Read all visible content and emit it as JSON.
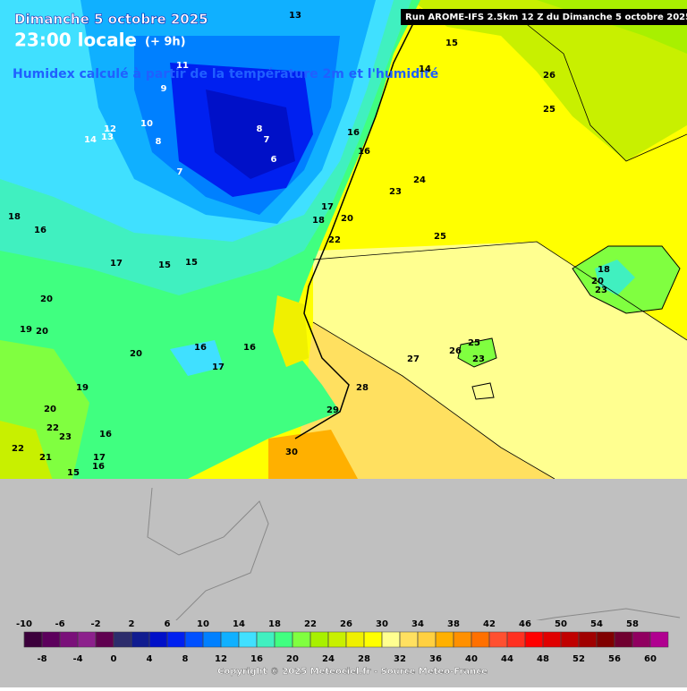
{
  "header": {
    "date": "Dimanche 5 octobre 2025",
    "time": "23:00 locale",
    "offset": "(+ 9h)",
    "subtitle": "Humidex calculé à partir de la température 2m et l'humidité",
    "run": "Run AROME-IFS 2.5km 12 Z du Dimanche 5 octobre 2025"
  },
  "contour_labels": [
    13,
    15,
    14,
    26,
    25,
    11,
    9,
    10,
    12,
    13,
    14,
    8,
    8,
    7,
    7,
    6,
    16,
    16,
    24,
    23,
    17,
    18,
    20,
    22,
    25,
    18,
    16,
    17,
    15,
    15,
    20,
    19,
    20,
    20,
    16,
    16,
    17,
    19,
    20,
    22,
    23,
    22,
    21,
    16,
    17,
    16,
    15,
    25,
    26,
    23,
    27,
    28,
    29,
    30,
    18,
    20,
    23
  ],
  "colorbar": {
    "ticks": [
      -10,
      -8,
      -6,
      -4,
      -2,
      0,
      2,
      4,
      6,
      8,
      10,
      12,
      14,
      16,
      18,
      20,
      22,
      24,
      26,
      28,
      30,
      32,
      34,
      36,
      38,
      40,
      42,
      44,
      46,
      48,
      50,
      52,
      54,
      56,
      58,
      60
    ],
    "colors": [
      "#3c003c",
      "#5c005c",
      "#7a107a",
      "#8c208c",
      "#600050",
      "#2c2c6c",
      "#101c90",
      "#0010c8",
      "#0020f0",
      "#0050ff",
      "#0080ff",
      "#10b0ff",
      "#40e0ff",
      "#40f0c0",
      "#40ff80",
      "#80ff40",
      "#a8f000",
      "#c8f000",
      "#f0f000",
      "#ffff00",
      "#ffff90",
      "#ffe060",
      "#ffd040",
      "#ffb000",
      "#ff9000",
      "#ff7000",
      "#ff5030",
      "#ff3020",
      "#ff0000",
      "#e00000",
      "#c00000",
      "#a00000",
      "#800000",
      "#700030",
      "#900060",
      "#b00090"
    ]
  },
  "footer": {
    "copyright": "Copyright © 2025 Meteociel.fr - Source Meteo-France"
  }
}
